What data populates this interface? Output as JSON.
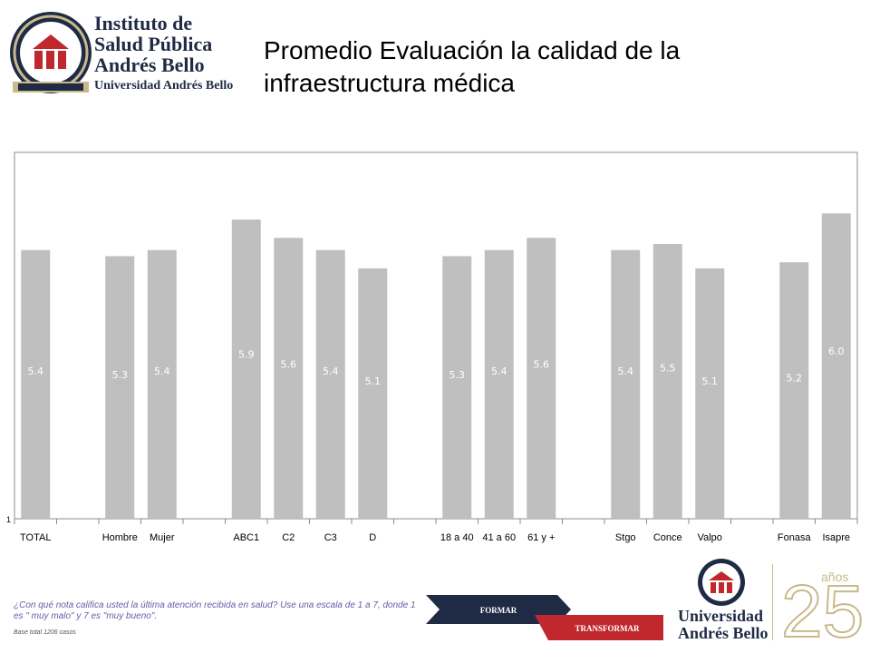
{
  "logo": {
    "line1": "Instituto de",
    "line2": "Salud Pública",
    "line3": "Andrés Bello",
    "line4": "Universidad Andrés Bello"
  },
  "title": "Promedio Evaluación la calidad de la infraestructura médica",
  "chart_data": {
    "type": "bar",
    "ylim": [
      1,
      7
    ],
    "y_tick_label": "1",
    "bar_color": "#bfbfbf",
    "label_color": "#ffffff",
    "groups": [
      {
        "categories": [
          "TOTAL"
        ],
        "values": [
          5.4
        ]
      },
      {
        "categories": [
          "Hombre",
          "Mujer"
        ],
        "values": [
          5.3,
          5.4
        ]
      },
      {
        "categories": [
          "ABC1",
          "C2",
          "C3",
          "D"
        ],
        "values": [
          5.9,
          5.6,
          5.4,
          5.1
        ]
      },
      {
        "categories": [
          "18 a 40",
          "41 a 60",
          "61 y +"
        ],
        "values": [
          5.3,
          5.4,
          5.6
        ]
      },
      {
        "categories": [
          "Stgo",
          "Conce",
          "Valpo"
        ],
        "values": [
          5.4,
          5.5,
          5.1
        ]
      },
      {
        "categories": [
          "Fonasa",
          "Isapre"
        ],
        "values": [
          5.2,
          6.0
        ]
      }
    ],
    "value_labels": [
      "5.4",
      "5.3",
      "5.4",
      "5.9",
      "5.6",
      "5.4",
      "5.1",
      "5.3",
      "5.4",
      "5.6",
      "5.4",
      "5.5",
      "5.1",
      "5.2",
      "6.0"
    ]
  },
  "footer": {
    "question": "¿Con qué nota califica usted la última atención recibida en salud? Use una escala de 1 a 7, donde 1 es \" muy malo\" y 7 es \"muy bueno\".",
    "base": "Base total 1206  casos"
  },
  "banner": {
    "formar": "FORMAR",
    "transformar": "TRANSFORMAR"
  },
  "university": {
    "line1": "Universidad",
    "line2": "Andrés Bello"
  },
  "anniversary": {
    "number": "25",
    "word": "años"
  },
  "colors": {
    "navy": "#1f2a44",
    "red": "#c0282d",
    "gold": "#c9b98a",
    "bar": "#bfbfbf"
  }
}
